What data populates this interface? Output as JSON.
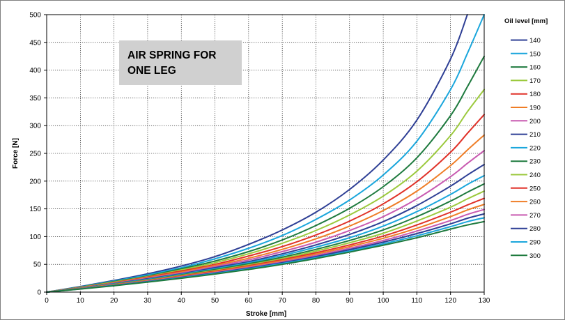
{
  "chart_data": {
    "type": "line",
    "title": "",
    "annotation": [
      "AIR SPRING FOR",
      "ONE LEG"
    ],
    "xlabel": "Stroke [mm]",
    "ylabel": "Force [N]",
    "xlim": [
      0,
      130
    ],
    "ylim": [
      0,
      500
    ],
    "xticks": [
      0,
      10,
      20,
      30,
      40,
      50,
      60,
      70,
      80,
      90,
      100,
      110,
      120,
      130
    ],
    "yticks": [
      0,
      50,
      100,
      150,
      200,
      250,
      300,
      350,
      400,
      450,
      500
    ],
    "grid": true,
    "legend_title": "Oil level [mm]",
    "legend_position": "right",
    "x": [
      0,
      10,
      20,
      30,
      40,
      50,
      60,
      70,
      80,
      90,
      100,
      110,
      120,
      125,
      130
    ],
    "series": [
      {
        "name": "140",
        "color": "#2e3f95",
        "values": [
          0,
          10,
          21,
          33,
          47,
          64,
          86,
          112,
          144,
          185,
          238,
          310,
          420,
          500,
          null
        ]
      },
      {
        "name": "150",
        "color": "#1aa6dc",
        "values": [
          0,
          9.5,
          20,
          31,
          44,
          60,
          79,
          102,
          131,
          166,
          211,
          272,
          365,
          430,
          500
        ]
      },
      {
        "name": "160",
        "color": "#1e7a3e",
        "values": [
          0,
          9,
          19,
          29,
          42,
          56,
          73,
          94,
          120,
          151,
          190,
          242,
          318,
          370,
          425
        ]
      },
      {
        "name": "170",
        "color": "#9bc93c",
        "values": [
          0,
          8.6,
          18,
          28,
          40,
          53,
          69,
          88,
          111,
          139,
          173,
          218,
          282,
          325,
          365
        ]
      },
      {
        "name": "180",
        "color": "#e03128",
        "values": [
          0,
          8.2,
          17,
          27,
          38,
          50,
          65,
          82,
          103,
          128,
          159,
          199,
          252,
          286,
          320
        ]
      },
      {
        "name": "190",
        "color": "#ef7d26",
        "values": [
          0,
          7.9,
          16.4,
          26,
          36,
          48,
          61,
          77,
          96,
          119,
          147,
          182,
          228,
          256,
          283
        ]
      },
      {
        "name": "200",
        "color": "#c85ab0",
        "values": [
          0,
          7.6,
          15.8,
          25,
          34.5,
          46,
          58,
          73,
          90,
          111,
          136,
          168,
          208,
          232,
          255
        ]
      },
      {
        "name": "210",
        "color": "#2e3f95",
        "values": [
          0,
          7.3,
          15.2,
          24,
          33,
          44,
          55,
          69,
          85,
          104,
          127,
          156,
          191,
          211,
          230
        ]
      },
      {
        "name": "220",
        "color": "#1aa6dc",
        "values": [
          0,
          7.1,
          14.7,
          23,
          32,
          42,
          53,
          66,
          81,
          98,
          119,
          145,
          176,
          194,
          210
        ]
      },
      {
        "name": "230",
        "color": "#1e7a3e",
        "values": [
          0,
          6.9,
          14.2,
          22,
          31,
          40.5,
          51,
          63,
          77,
          93,
          112,
          136,
          164,
          180,
          195
        ]
      },
      {
        "name": "240",
        "color": "#9bc93c",
        "values": [
          0,
          6.7,
          13.8,
          21.4,
          30,
          39,
          49,
          60.5,
          74,
          89,
          106,
          128,
          153,
          168,
          182
        ]
      },
      {
        "name": "250",
        "color": "#e03128",
        "values": [
          0,
          6.5,
          13.4,
          20.8,
          29,
          37.7,
          47.5,
          58.5,
          71,
          85,
          101,
          121,
          144,
          157,
          169
        ]
      },
      {
        "name": "260",
        "color": "#ef7d26",
        "values": [
          0,
          6.3,
          13,
          20.2,
          28.1,
          36.5,
          46,
          56.5,
          68.5,
          82,
          97,
          115,
          136,
          148,
          158
        ]
      },
      {
        "name": "270",
        "color": "#c85ab0",
        "values": [
          0,
          6.1,
          12.6,
          19.6,
          27.3,
          35.4,
          44.5,
          54.5,
          66,
          79,
          93,
          110,
          129,
          140,
          149
        ]
      },
      {
        "name": "280",
        "color": "#2e3f95",
        "values": [
          0,
          5.9,
          12.2,
          19,
          26.5,
          34.4,
          43.2,
          53,
          64,
          76.5,
          90,
          105.5,
          123,
          133,
          141
        ]
      },
      {
        "name": "290",
        "color": "#1aa6dc",
        "values": [
          0,
          5.7,
          11.9,
          18.5,
          25.8,
          33.5,
          42,
          51.5,
          62,
          74,
          87,
          101.5,
          118,
          127,
          134
        ]
      },
      {
        "name": "300",
        "color": "#1e7a3e",
        "values": [
          0,
          5.5,
          11.5,
          18,
          25,
          32.5,
          40.8,
          50,
          60.5,
          72,
          84.5,
          98,
          113.5,
          121,
          127
        ]
      }
    ]
  }
}
